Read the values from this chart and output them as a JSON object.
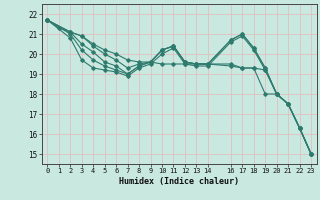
{
  "xlabel": "Humidex (Indice chaleur)",
  "bg_color": "#c8e8e0",
  "grid_color": "#e0c0c0",
  "line_color": "#2e7b6e",
  "lines": [
    {
      "x": [
        0,
        1,
        2,
        3,
        4,
        5,
        6,
        7,
        8,
        9,
        10,
        11,
        12,
        13,
        14,
        16,
        17,
        18,
        19,
        20,
        21,
        22,
        23
      ],
      "y": [
        21.7,
        21.3,
        21.1,
        20.9,
        20.5,
        20.2,
        20.0,
        19.7,
        19.6,
        19.6,
        19.5,
        19.5,
        19.5,
        19.5,
        19.5,
        19.4,
        19.3,
        19.3,
        19.2,
        18.0,
        17.5,
        16.3,
        15.0
      ]
    },
    {
      "x": [
        0,
        2,
        3,
        4,
        5,
        6,
        7,
        8,
        9,
        10,
        11,
        12,
        13,
        14,
        16,
        17,
        18,
        19,
        20,
        21,
        22,
        23
      ],
      "y": [
        21.7,
        21.1,
        20.9,
        20.4,
        20.0,
        19.7,
        19.3,
        19.5,
        19.6,
        20.2,
        20.4,
        19.6,
        19.5,
        19.5,
        19.5,
        19.3,
        19.3,
        18.0,
        18.0,
        17.5,
        16.3,
        15.0
      ]
    },
    {
      "x": [
        0,
        2,
        3,
        4,
        5,
        6,
        7,
        8,
        9,
        10,
        11,
        12,
        13,
        14,
        16,
        17,
        18,
        19,
        20,
        21,
        22,
        23
      ],
      "y": [
        21.7,
        21.1,
        20.5,
        20.1,
        19.6,
        19.4,
        19.0,
        19.4,
        19.6,
        20.2,
        20.4,
        19.6,
        19.5,
        19.5,
        20.7,
        21.0,
        20.3,
        19.3,
        18.0,
        17.5,
        16.3,
        15.0
      ]
    },
    {
      "x": [
        0,
        2,
        3,
        4,
        5,
        6,
        7,
        8,
        9,
        10,
        11,
        12,
        13,
        14,
        16,
        17,
        18,
        19,
        20,
        21,
        22,
        23
      ],
      "y": [
        21.7,
        21.0,
        20.2,
        19.7,
        19.4,
        19.2,
        19.0,
        19.4,
        19.6,
        20.2,
        20.4,
        19.6,
        19.5,
        19.5,
        20.7,
        21.0,
        20.3,
        19.3,
        18.0,
        17.5,
        16.3,
        15.0
      ]
    },
    {
      "x": [
        0,
        2,
        3,
        4,
        5,
        6,
        7,
        8,
        9,
        10,
        11,
        12,
        13,
        14,
        16,
        17,
        18,
        19,
        20,
        21,
        22,
        23
      ],
      "y": [
        21.7,
        20.8,
        19.7,
        19.3,
        19.2,
        19.1,
        18.9,
        19.3,
        19.5,
        20.0,
        20.3,
        19.5,
        19.4,
        19.4,
        20.6,
        20.9,
        20.2,
        19.2,
        18.0,
        17.5,
        16.3,
        15.0
      ]
    }
  ],
  "xlim": [
    -0.5,
    23.5
  ],
  "ylim": [
    14.5,
    22.5
  ],
  "yticks": [
    15,
    16,
    17,
    18,
    19,
    20,
    21,
    22
  ],
  "xticks": [
    0,
    1,
    2,
    3,
    4,
    5,
    6,
    7,
    8,
    9,
    10,
    11,
    12,
    13,
    14,
    16,
    17,
    18,
    19,
    20,
    21,
    22,
    23
  ]
}
